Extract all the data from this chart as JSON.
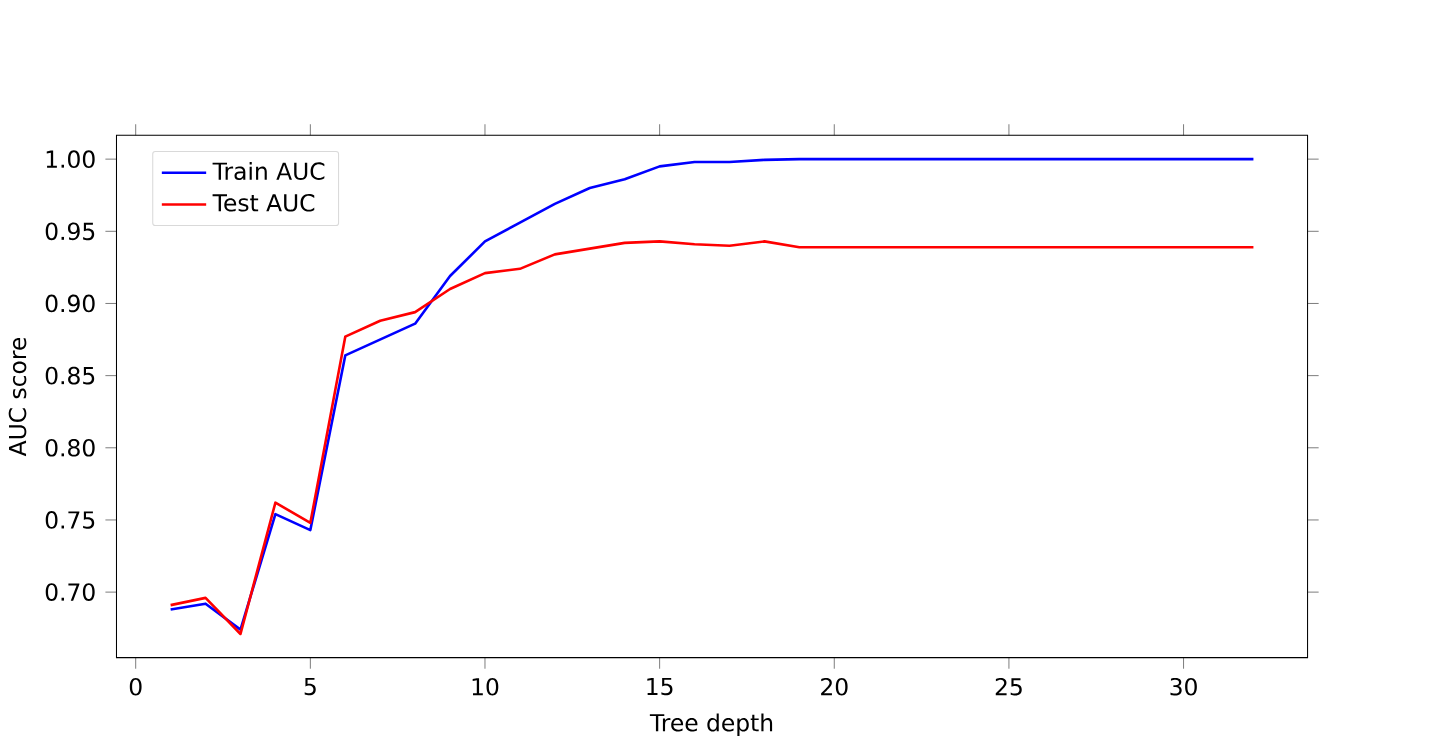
{
  "chart_data": {
    "type": "line",
    "xlabel": "Tree depth",
    "ylabel": "AUC score",
    "x": [
      1,
      2,
      3,
      4,
      5,
      6,
      7,
      8,
      9,
      10,
      11,
      12,
      13,
      14,
      15,
      16,
      17,
      18,
      19,
      20,
      21,
      22,
      23,
      24,
      25,
      26,
      27,
      28,
      29,
      30,
      31,
      32
    ],
    "series": [
      {
        "name": "Train AUC",
        "color": "#0000ff",
        "values": [
          0.688,
          0.692,
          0.674,
          0.754,
          0.743,
          0.864,
          0.875,
          0.886,
          0.919,
          0.943,
          0.956,
          0.969,
          0.98,
          0.986,
          0.995,
          0.998,
          0.998,
          0.9995,
          1.0,
          1.0,
          1.0,
          1.0,
          1.0,
          1.0,
          1.0,
          1.0,
          1.0,
          1.0,
          1.0,
          1.0,
          1.0,
          1.0
        ]
      },
      {
        "name": "Test AUC",
        "color": "#ff0000",
        "values": [
          0.691,
          0.696,
          0.671,
          0.762,
          0.748,
          0.877,
          0.888,
          0.894,
          0.91,
          0.921,
          0.924,
          0.934,
          0.938,
          0.942,
          0.943,
          0.941,
          0.94,
          0.943,
          0.939,
          0.939,
          0.939,
          0.939,
          0.939,
          0.939,
          0.939,
          0.939,
          0.939,
          0.939,
          0.939,
          0.939,
          0.939,
          0.939
        ]
      }
    ],
    "xlim": [
      -0.55,
      33.55
    ],
    "ylim": [
      0.6546,
      1.0165
    ],
    "xticks": [
      0,
      5,
      10,
      15,
      20,
      25,
      30
    ],
    "yticks": [
      {
        "value": 0.7,
        "label": "0.70"
      },
      {
        "value": 0.75,
        "label": "0.75"
      },
      {
        "value": 0.8,
        "label": "0.80"
      },
      {
        "value": 0.85,
        "label": "0.85"
      },
      {
        "value": 0.9,
        "label": "0.90"
      },
      {
        "value": 0.95,
        "label": "0.95"
      },
      {
        "value": 1.0,
        "label": "1.00"
      }
    ],
    "legend": "top left",
    "grid": false,
    "marker": "none",
    "line_style": "solid"
  }
}
